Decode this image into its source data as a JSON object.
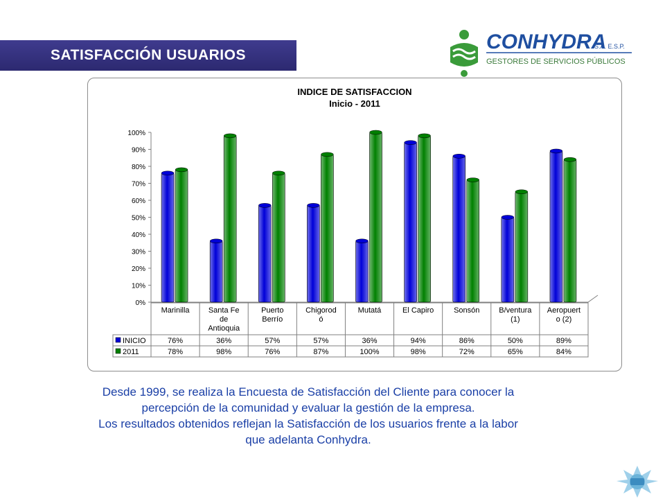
{
  "header": {
    "title": "SATISFACCIÓN  USUARIOS"
  },
  "logo": {
    "name": "CONHYDRA",
    "suffix": "S.A.  E.S.P.",
    "tagline": "GESTORES DE SERVICIOS PÚBLICOS"
  },
  "colors": {
    "banner": "#2f2c77",
    "inicio": "#0000d8",
    "y2011": "#008000",
    "text_blue": "#1a3fa6",
    "logo_green": "#3a9b3a",
    "logo_blue": "#1f4fa0"
  },
  "chart_data": {
    "type": "bar",
    "title": "INDICE DE SATISFACCION",
    "subtitle": "Inicio -  2011",
    "categories": [
      "Marinilla",
      "Santa Fe de Antioquia",
      "Puerto Berrío",
      "Chigorodó",
      "Mutatá",
      "El Capiro",
      "Sonsón",
      "B/ventura (1)",
      "Aeropuerto (2)"
    ],
    "category_lines": [
      [
        "Marinilla"
      ],
      [
        "Santa Fe",
        "de",
        "Antioquia"
      ],
      [
        "Puerto",
        "Berrío"
      ],
      [
        "Chigorod",
        "ó"
      ],
      [
        "Mutatá"
      ],
      [
        "El Capiro"
      ],
      [
        "Sonsón"
      ],
      [
        "B/ventura",
        "(1)"
      ],
      [
        "Aeropuert",
        "o (2)"
      ]
    ],
    "series": [
      {
        "name": "INICIO",
        "values": [
          76,
          36,
          57,
          57,
          36,
          94,
          86,
          50,
          89
        ],
        "labels": [
          "76%",
          "36%",
          "57%",
          "57%",
          "36%",
          "94%",
          "86%",
          "50%",
          "89%"
        ]
      },
      {
        "name": "2011",
        "values": [
          78,
          98,
          76,
          87,
          100,
          98,
          72,
          65,
          84
        ],
        "labels": [
          "78%",
          "98%",
          "76%",
          "87%",
          "100%",
          "98%",
          "72%",
          "65%",
          "84%"
        ]
      }
    ],
    "yticks": [
      "0%",
      "10%",
      "20%",
      "30%",
      "40%",
      "50%",
      "60%",
      "70%",
      "80%",
      "90%",
      "100%"
    ],
    "ylim": [
      0,
      100
    ],
    "grid": false,
    "data_table": true
  },
  "body": {
    "lines": [
      "Desde 1999, se  realiza la Encuesta de Satisfacción del Cliente para  conocer la",
      "percepción de la comunidad y evaluar la gestión de la empresa.",
      "Los resultados obtenidos reflejan la Satisfacción de los usuarios frente a la labor",
      "que adelanta Conhydra."
    ]
  }
}
